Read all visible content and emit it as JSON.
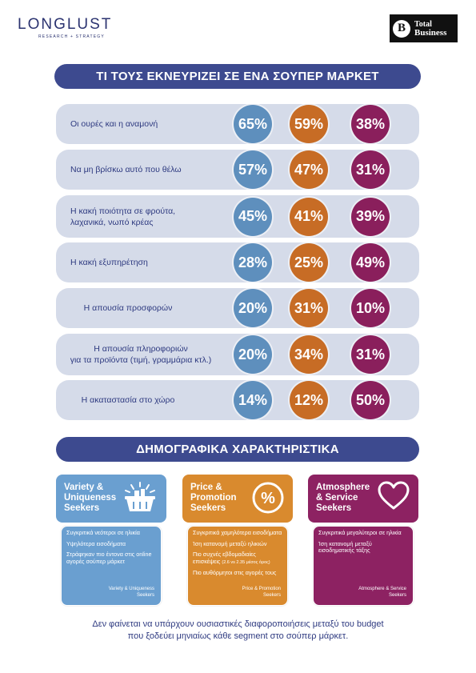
{
  "header": {
    "brand_left": "LONGLUST",
    "brand_left_sub": "RESEARCH + STRATEGY",
    "brand_right_badge": "B",
    "brand_right_l1": "Total",
    "brand_right_l2": "Business"
  },
  "section1_title": "ΤΙ ΤΟΥΣ ΕΚΝΕΥΡΙΖΕΙ ΣΕ ΕΝΑ ΣΟΥΠΕΡ ΜΑΡΚΕΤ",
  "section2_title": "ΔΗΜΟΓΡΑΦΙΚΑ ΧΑΡΑΚΤΗΡΙΣΤΙΚΑ",
  "chart_data": {
    "type": "table",
    "categories": [
      "Οι ουρές και η αναμονή",
      "Να μη βρίσκω αυτό που θέλω",
      "Η κακή ποιότητα σε φρούτα, λαχανικά, νωπό κρέας",
      "Η κακή εξυπηρέτηση",
      "Η απουσία προσφορών",
      "Η απουσία πληροφοριών για τα προϊόντα (τιμή, γραμμάρια κτλ.)",
      "Η ακαταστασία στο χώρο"
    ],
    "series": [
      {
        "name": "Variety & Uniqueness Seekers",
        "color": "#5e8fbd",
        "values": [
          "65%",
          "57%",
          "45%",
          "28%",
          "20%",
          "20%",
          "14%"
        ]
      },
      {
        "name": "Price & Promotion Seekers",
        "color": "#c76c25",
        "values": [
          "59%",
          "47%",
          "41%",
          "25%",
          "31%",
          "34%",
          "12%"
        ]
      },
      {
        "name": "Atmosphere & Service Seekers",
        "color": "#8a1f5c",
        "values": [
          "38%",
          "31%",
          "39%",
          "49%",
          "10%",
          "31%",
          "50%"
        ]
      }
    ]
  },
  "rows": [
    {
      "label": "Οι ουρές και η αναμονή"
    },
    {
      "label": "Να μη βρίσκω αυτό που θέλω"
    },
    {
      "label_l1": "Η κακή ποιότητα σε φρούτα,",
      "label_l2": "λαχανικά, νωπό κρέας"
    },
    {
      "label": "Η κακή εξυπηρέτηση"
    },
    {
      "label": "Η απουσία προσφορών"
    },
    {
      "label_l1": "Η απουσία πληροφοριών",
      "label_l2": "για τα προϊόντα (τιμή, γραμμάρια κτλ.)"
    },
    {
      "label": "Η ακαταστασία στο χώρο"
    }
  ],
  "cards": {
    "variety": {
      "title_l1": "Variety &",
      "title_l2": "Uniqueness",
      "title_l3": "Seekers",
      "icon": "basket-icon",
      "color": "#6a9fd0",
      "bullets": [
        "Συγκριτικά νεότεροι σε ηλικία",
        "Υψηλότερα εισοδήματα",
        "Στράφηκαν πιο έντονα στις online αγορές σούπερ μάρκετ"
      ],
      "footer_l1": "Variety & Uniqueness",
      "footer_l2": "Seekers"
    },
    "price": {
      "title_l1": "Price &",
      "title_l2": "Promotion",
      "title_l3": "Seekers",
      "icon": "percent-icon",
      "color": "#d98a2e",
      "bullets": [
        "Συγκριτικά χαμηλότερα εισοδήματα",
        "Ίση κατανομή μεταξύ ηλικιών",
        "Πιο συχνές εβδομαδιαίες επισκέψεις",
        "Πιο αυθόρμητοι στις αγορές τους"
      ],
      "bullet_note": "(2.6 vs 2.35 μέσος όρος)",
      "footer_l1": "Price & Promotion",
      "footer_l2": "Seekers"
    },
    "atmosphere": {
      "title_l1": "Atmosphere",
      "title_l2": "& Service",
      "title_l3": "Seekers",
      "icon": "heart-icon",
      "color": "#8d2262",
      "bullets": [
        "Συγκριτικά μεγαλύτεροι σε ηλικία",
        "Ίση κατανομή μεταξύ εισοδηματικής τάξης"
      ],
      "footer_l1": "Atmosphere & Service",
      "footer_l2": "Seekers"
    }
  },
  "footnote_l1": "Δεν φαίνεται να υπάρχουν ουσιαστικές διαφοροποιήσεις μεταξύ του budget",
  "footnote_l2": "που ξοδεύει μηνιαίως κάθε segment στο σούπερ μάρκετ."
}
